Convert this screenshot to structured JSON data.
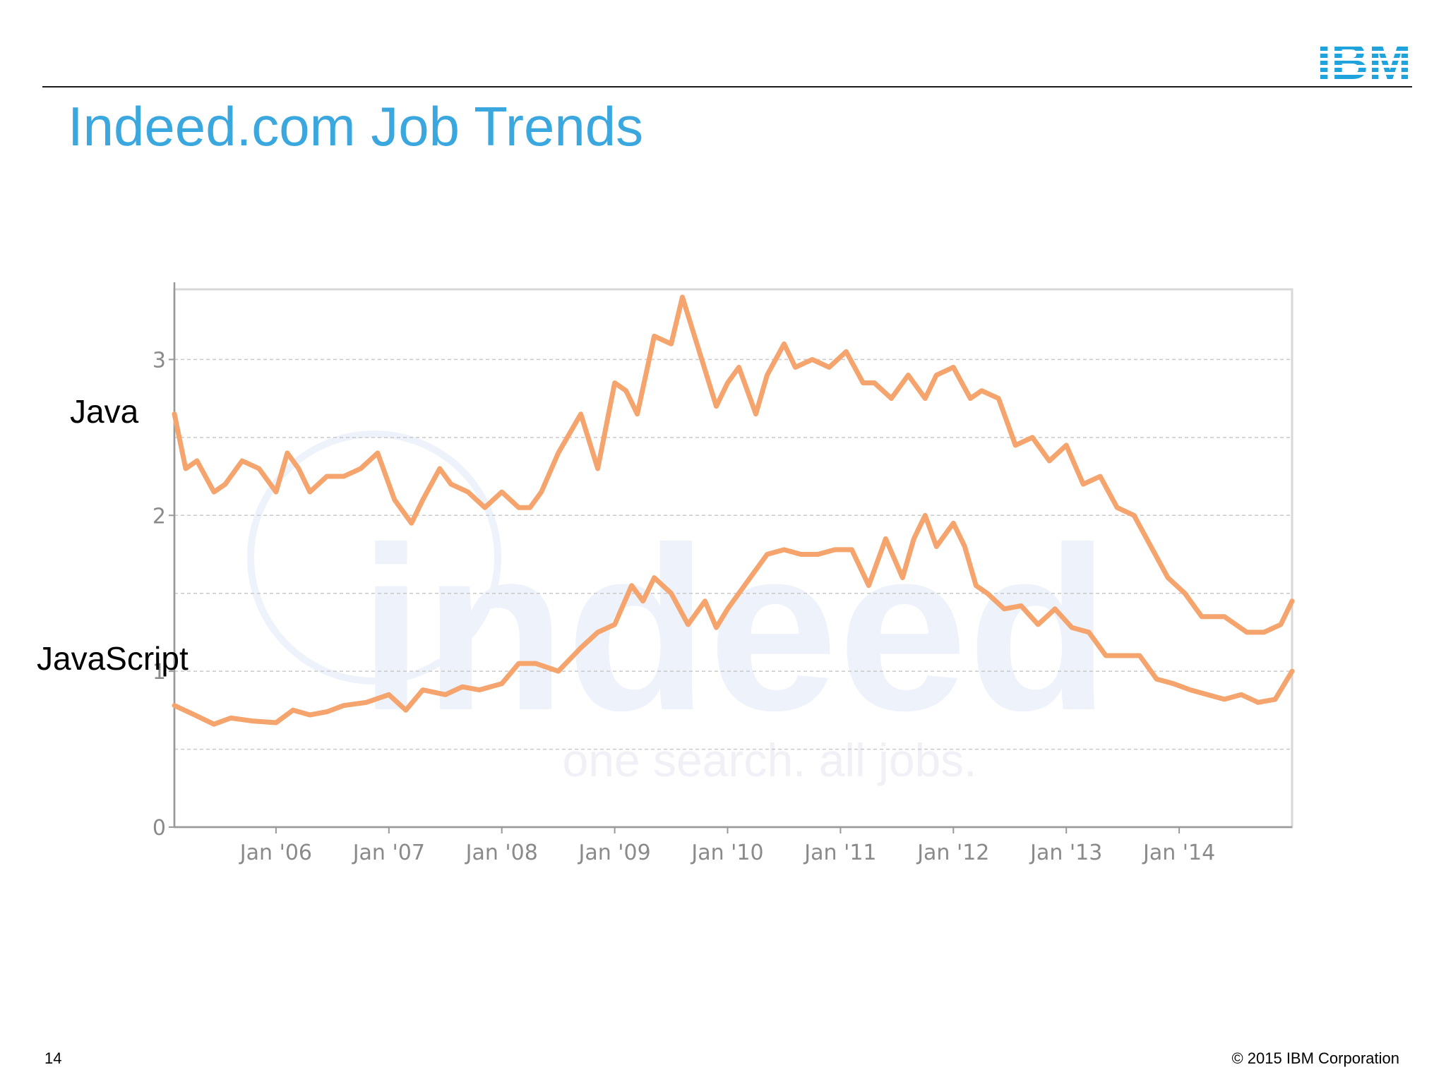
{
  "slide": {
    "title": "Indeed.com Job Trends",
    "page_number": "14",
    "copyright": "© 2015 IBM Corporation",
    "logo_text": "IBM",
    "series_labels": {
      "java": "Java",
      "javascript": "JavaScript"
    },
    "colors": {
      "title": "#3aa7de",
      "logo": "#1fa3dc",
      "series": "#f4a46c"
    }
  },
  "chart_data": {
    "type": "line",
    "title": "",
    "xlabel": "",
    "ylabel": "",
    "xlim": [
      2005.1,
      2015.0
    ],
    "ylim": [
      0,
      3.45
    ],
    "grid": true,
    "x_ticks": [
      2006,
      2007,
      2008,
      2009,
      2010,
      2011,
      2012,
      2013,
      2014
    ],
    "x_tick_labels": [
      "Jan '06",
      "Jan '07",
      "Jan '08",
      "Jan '09",
      "Jan '10",
      "Jan '11",
      "Jan '12",
      "Jan '13",
      "Jan '14"
    ],
    "y_ticks": [
      0,
      1,
      2,
      3
    ],
    "y_tick_labels": [
      "0",
      "1",
      "2",
      "3"
    ],
    "watermark": [
      "indeed",
      "one search. all jobs."
    ],
    "series": [
      {
        "name": "Java",
        "x": [
          2005.1,
          2005.2,
          2005.3,
          2005.45,
          2005.55,
          2005.7,
          2005.85,
          2006.0,
          2006.1,
          2006.2,
          2006.3,
          2006.45,
          2006.6,
          2006.75,
          2006.9,
          2007.05,
          2007.2,
          2007.3,
          2007.45,
          2007.55,
          2007.7,
          2007.85,
          2008.0,
          2008.15,
          2008.25,
          2008.35,
          2008.5,
          2008.7,
          2008.85,
          2009.0,
          2009.1,
          2009.2,
          2009.35,
          2009.5,
          2009.6,
          2009.75,
          2009.9,
          2010.0,
          2010.1,
          2010.25,
          2010.35,
          2010.5,
          2010.6,
          2010.75,
          2010.9,
          2011.05,
          2011.2,
          2011.3,
          2011.45,
          2011.6,
          2011.75,
          2011.85,
          2012.0,
          2012.15,
          2012.25,
          2012.4,
          2012.55,
          2012.7,
          2012.85,
          2013.0,
          2013.15,
          2013.3,
          2013.45,
          2013.6,
          2013.75,
          2013.9,
          2014.05,
          2014.2,
          2014.4,
          2014.6,
          2014.75,
          2014.9,
          2015.0
        ],
        "values": [
          2.65,
          2.3,
          2.35,
          2.15,
          2.2,
          2.35,
          2.3,
          2.15,
          2.4,
          2.3,
          2.15,
          2.25,
          2.25,
          2.3,
          2.4,
          2.1,
          1.95,
          2.1,
          2.3,
          2.2,
          2.15,
          2.05,
          2.15,
          2.05,
          2.05,
          2.15,
          2.4,
          2.65,
          2.3,
          2.85,
          2.8,
          2.65,
          3.15,
          3.1,
          3.4,
          3.05,
          2.7,
          2.85,
          2.95,
          2.65,
          2.9,
          3.1,
          2.95,
          3.0,
          2.95,
          3.05,
          2.85,
          2.85,
          2.75,
          2.9,
          2.75,
          2.9,
          2.95,
          2.75,
          2.8,
          2.75,
          2.45,
          2.5,
          2.35,
          2.45,
          2.2,
          2.25,
          2.05,
          2.0,
          1.8,
          1.6,
          1.5,
          1.35,
          1.35,
          1.25,
          1.25,
          1.3,
          1.45
        ]
      },
      {
        "name": "JavaScript",
        "x": [
          2005.1,
          2005.25,
          2005.45,
          2005.6,
          2005.8,
          2006.0,
          2006.15,
          2006.3,
          2006.45,
          2006.6,
          2006.8,
          2007.0,
          2007.15,
          2007.3,
          2007.5,
          2007.65,
          2007.8,
          2008.0,
          2008.15,
          2008.3,
          2008.5,
          2008.7,
          2008.85,
          2009.0,
          2009.15,
          2009.25,
          2009.35,
          2009.5,
          2009.65,
          2009.8,
          2009.9,
          2010.0,
          2010.1,
          2010.2,
          2010.35,
          2010.5,
          2010.65,
          2010.8,
          2010.95,
          2011.1,
          2011.25,
          2011.4,
          2011.55,
          2011.65,
          2011.75,
          2011.85,
          2012.0,
          2012.1,
          2012.2,
          2012.3,
          2012.45,
          2012.6,
          2012.75,
          2012.9,
          2013.05,
          2013.2,
          2013.35,
          2013.5,
          2013.65,
          2013.8,
          2013.95,
          2014.1,
          2014.25,
          2014.4,
          2014.55,
          2014.7,
          2014.85,
          2015.0
        ],
        "values": [
          0.78,
          0.73,
          0.66,
          0.7,
          0.68,
          0.67,
          0.75,
          0.72,
          0.74,
          0.78,
          0.8,
          0.85,
          0.75,
          0.88,
          0.85,
          0.9,
          0.88,
          0.92,
          1.05,
          1.05,
          1.0,
          1.15,
          1.25,
          1.3,
          1.55,
          1.45,
          1.6,
          1.5,
          1.3,
          1.45,
          1.28,
          1.4,
          1.5,
          1.6,
          1.75,
          1.78,
          1.75,
          1.75,
          1.78,
          1.78,
          1.55,
          1.85,
          1.6,
          1.85,
          2.0,
          1.8,
          1.95,
          1.8,
          1.55,
          1.5,
          1.4,
          1.42,
          1.3,
          1.4,
          1.28,
          1.25,
          1.1,
          1.1,
          1.1,
          0.95,
          0.92,
          0.88,
          0.85,
          0.82,
          0.85,
          0.8,
          0.82,
          1.0
        ]
      }
    ]
  }
}
